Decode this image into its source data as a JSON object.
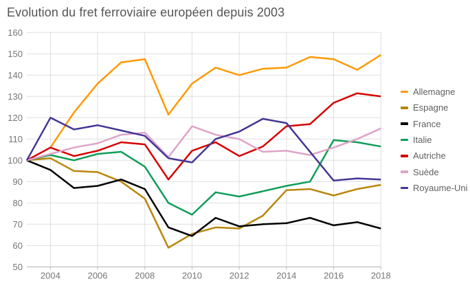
{
  "title": "Evolution du fret ferroviaire européen depuis 2003",
  "palette": {
    "background": "#ffffff",
    "gridline": "#dfdfdf",
    "axis_line": "#b6b6b6",
    "tick_label": "#757575",
    "title_text": "#555555",
    "legend_text": "#5f5f5f"
  },
  "chart_data": {
    "type": "line",
    "title": "Evolution du fret ferroviaire européen depuis 2003",
    "xlabel": "",
    "ylabel": "",
    "grid": true,
    "legend_position": "right",
    "ylim": [
      50,
      160
    ],
    "y_ticks": [
      50,
      60,
      70,
      80,
      90,
      100,
      110,
      120,
      130,
      140,
      150,
      160
    ],
    "x_ticks": [
      2004,
      2006,
      2008,
      2010,
      2012,
      2014,
      2016,
      2018
    ],
    "x": [
      2003,
      2004,
      2005,
      2006,
      2007,
      2008,
      2009,
      2010,
      2011,
      2012,
      2013,
      2014,
      2015,
      2016,
      2017,
      2018
    ],
    "series": [
      {
        "name": "Allemagne",
        "color": "#ff9902",
        "values": [
          100,
          106,
          122.5,
          136,
          146,
          147.5,
          121.5,
          136,
          143.5,
          140,
          143,
          143.5,
          148.5,
          147.5,
          142.5,
          149.5
        ]
      },
      {
        "name": "Espagne",
        "color": "#b8860b",
        "values": [
          100,
          101,
          95,
          94.5,
          90,
          82,
          59,
          65.5,
          68.5,
          68,
          74,
          86,
          86.5,
          83.5,
          86.5,
          88.5
        ]
      },
      {
        "name": "France",
        "color": "#000000",
        "values": [
          100,
          95.5,
          87,
          88,
          91,
          86.5,
          68.5,
          64.5,
          73,
          69,
          70,
          70.5,
          73,
          69.5,
          71,
          68
        ]
      },
      {
        "name": "Italie",
        "color": "#0f9d58",
        "values": [
          100,
          102.5,
          100,
          103,
          104,
          97,
          80,
          74.5,
          85,
          83,
          85.5,
          88,
          90,
          109.5,
          108.5,
          106.5
        ]
      },
      {
        "name": "Autriche",
        "color": "#d50000",
        "values": [
          100,
          106,
          102,
          104.5,
          108.5,
          107.5,
          91,
          104.5,
          108.5,
          102,
          106.5,
          116,
          117,
          127,
          131.5,
          130
        ]
      },
      {
        "name": "Suède",
        "color": "#dfa3c8",
        "values": [
          100,
          103,
          106,
          108,
          112,
          113,
          101.5,
          116,
          112,
          110,
          104,
          104.5,
          102.5,
          106,
          110,
          115
        ]
      },
      {
        "name": "Royaume-Uni",
        "color": "#433695",
        "values": [
          100,
          120,
          114.5,
          116.5,
          114,
          111.5,
          101,
          99,
          110,
          113.5,
          119.5,
          117.5,
          104,
          90.5,
          91.5,
          91
        ]
      }
    ]
  }
}
